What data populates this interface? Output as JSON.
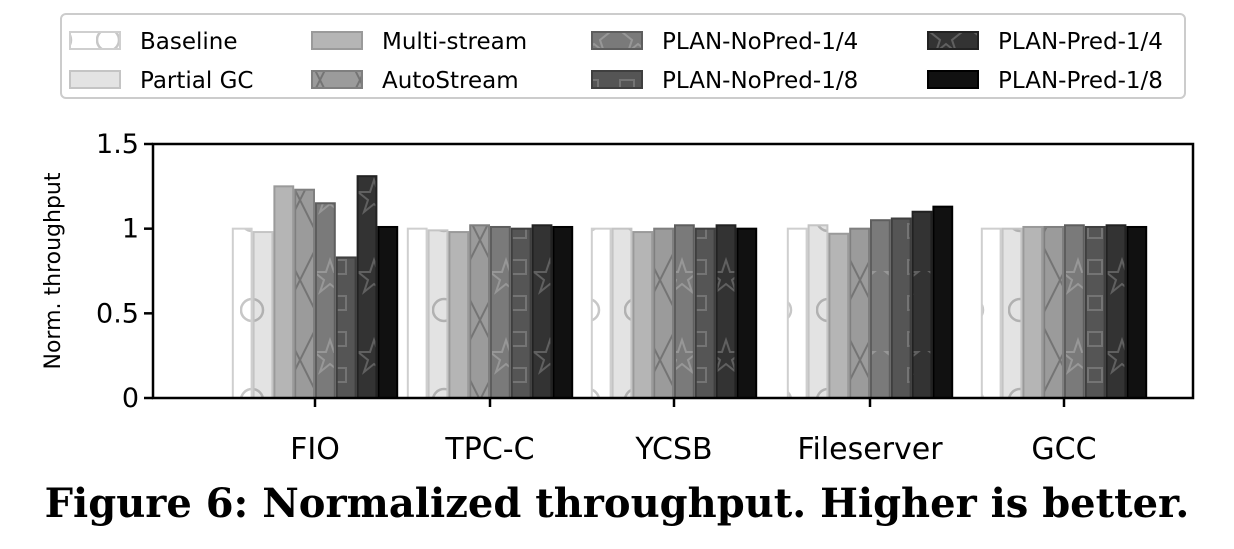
{
  "caption": "Figure 6: Normalized throughput. Higher is better.",
  "chart_data": {
    "type": "bar",
    "title": "",
    "xlabel": "",
    "ylabel": "Norm. throughput",
    "ylim": [
      0,
      1.5
    ],
    "yticks": [
      0,
      0.5,
      1,
      1.5
    ],
    "ytick_labels": [
      "0",
      "0.5",
      "1",
      "1.5"
    ],
    "grid": false,
    "legend_position": "top",
    "categories": [
      "FIO",
      "TPC-C",
      "YCSB",
      "Fileserver",
      "GCC"
    ],
    "series": [
      {
        "name": "Baseline",
        "color": "#ffffff",
        "edge": "#cfcfcf",
        "pattern": "circles",
        "values": [
          1.0,
          1.0,
          1.0,
          1.0,
          1.0
        ]
      },
      {
        "name": "Partial GC",
        "color": "#e3e3e3",
        "edge": "#c4c4c4",
        "pattern": "circles",
        "values": [
          0.98,
          0.99,
          1.0,
          1.02,
          1.0
        ]
      },
      {
        "name": "Multi-stream",
        "color": "#b5b5b5",
        "edge": "#9a9a9a",
        "pattern": "none",
        "values": [
          1.25,
          0.98,
          0.98,
          0.97,
          1.01
        ]
      },
      {
        "name": "AutoStream",
        "color": "#9b9b9b",
        "edge": "#7f7f7f",
        "pattern": "cross",
        "values": [
          1.23,
          1.02,
          1.0,
          1.0,
          1.01
        ]
      },
      {
        "name": "PLAN-NoPred-1/4",
        "color": "#7a7a7a",
        "edge": "#5e5e5e",
        "pattern": "stars",
        "values": [
          1.15,
          1.01,
          1.02,
          1.05,
          1.02
        ]
      },
      {
        "name": "PLAN-NoPred-1/8",
        "color": "#555555",
        "edge": "#3f3f3f",
        "pattern": "squares",
        "values": [
          0.83,
          1.0,
          1.0,
          1.06,
          1.01
        ]
      },
      {
        "name": "PLAN-Pred-1/4",
        "color": "#333333",
        "edge": "#222222",
        "pattern": "stars",
        "values": [
          1.31,
          1.02,
          1.02,
          1.1,
          1.02
        ]
      },
      {
        "name": "PLAN-Pred-1/8",
        "color": "#111111",
        "edge": "#000000",
        "pattern": "none",
        "values": [
          1.01,
          1.01,
          1.0,
          1.13,
          1.01
        ]
      }
    ]
  }
}
